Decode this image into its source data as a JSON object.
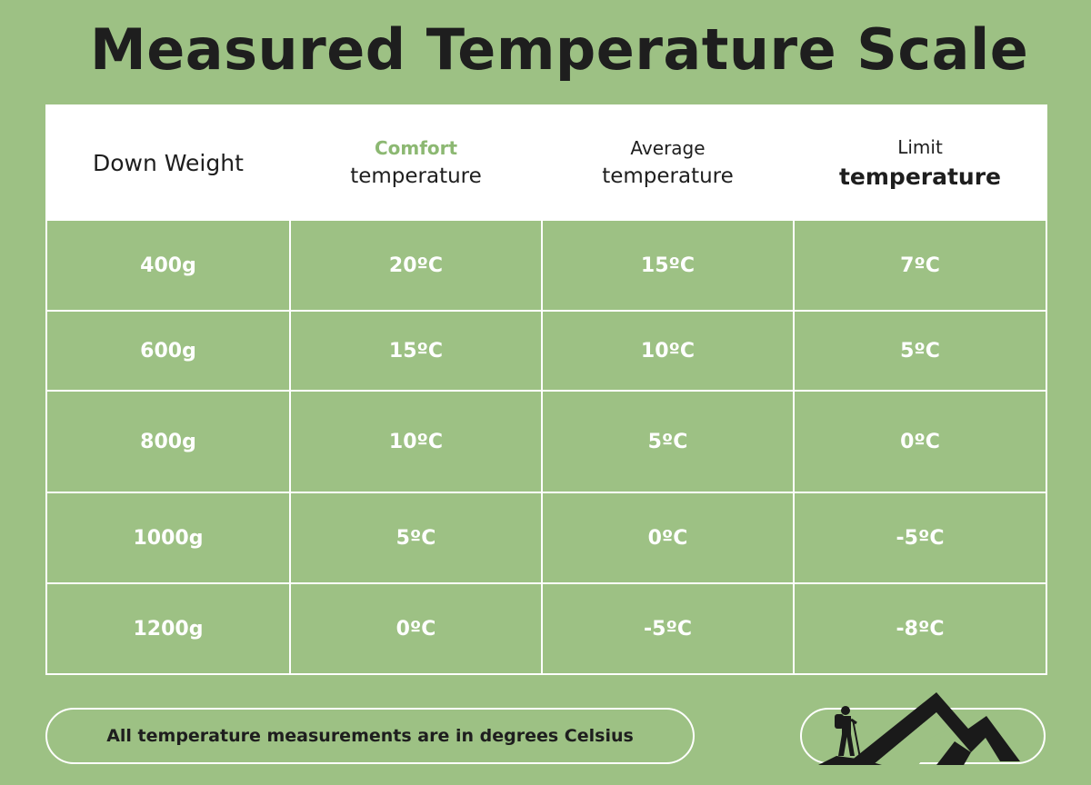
{
  "title": "Measured Temperature Scale",
  "table": {
    "headers": {
      "col1": "Down Weight",
      "col2_line1": "Comfort",
      "col2_line2": "temperature",
      "col3_line1": "Average",
      "col3_line2": "temperature",
      "col4_line1": "Limit",
      "col4_line2": "temperature"
    },
    "rows": [
      {
        "weight": "400g",
        "comfort": "20ºC",
        "average": "15ºC",
        "limit": "7ºC"
      },
      {
        "weight": "600g",
        "comfort": "15ºC",
        "average": "10ºC",
        "limit": "5ºC"
      },
      {
        "weight": "800g",
        "comfort": "10ºC",
        "average": "5ºC",
        "limit": "0ºC"
      },
      {
        "weight": "1000g",
        "comfort": "5ºC",
        "average": "0ºC",
        "limit": "-5ºC"
      },
      {
        "weight": "1200g",
        "comfort": "0ºC",
        "average": "-5ºC",
        "limit": "-8ºC"
      }
    ]
  },
  "note": "All temperature measurements are in degrees Celsius",
  "colors": {
    "background": "#9dc184",
    "comfort_accent": "#8cb872",
    "text_dark": "#1e1e1e"
  },
  "icons": {
    "logo": "hiker-mountain-icon"
  }
}
